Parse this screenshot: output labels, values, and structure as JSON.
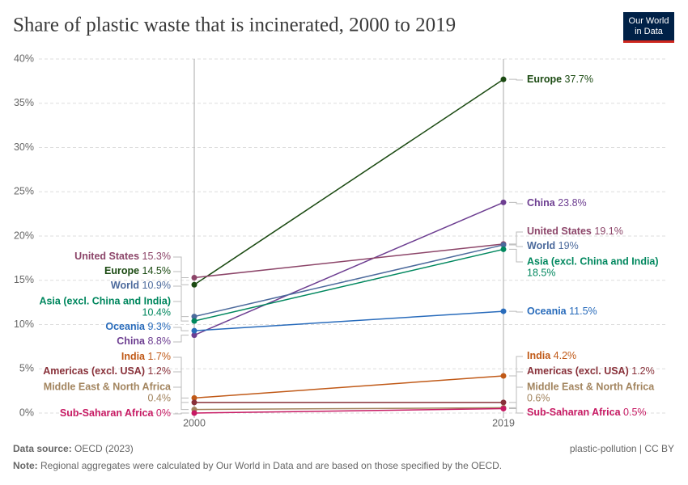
{
  "chart_data": {
    "type": "slope",
    "title": "Share of plastic waste that is incinerated, 2000 to 2019",
    "logo": [
      "Our World",
      "in Data"
    ],
    "categories": [
      "2000",
      "2019"
    ],
    "ylim": [
      0,
      40
    ],
    "yticks": [
      {
        "value": 0,
        "label": "0%"
      },
      {
        "value": 5,
        "label": "5%"
      },
      {
        "value": 10,
        "label": "10%"
      },
      {
        "value": 15,
        "label": "15%"
      },
      {
        "value": 20,
        "label": "20%"
      },
      {
        "value": 25,
        "label": "25%"
      },
      {
        "value": 30,
        "label": "30%"
      },
      {
        "value": 35,
        "label": "35%"
      },
      {
        "value": 40,
        "label": "40%"
      }
    ],
    "grid": true,
    "series": [
      {
        "name": "Europe",
        "color": "#1b4a12",
        "values": [
          14.5,
          37.7
        ],
        "value_labels": [
          "14.5%",
          "37.7%"
        ]
      },
      {
        "name": "China",
        "color": "#6d3e91",
        "values": [
          8.8,
          23.8
        ],
        "value_labels": [
          "8.8%",
          "23.8%"
        ]
      },
      {
        "name": "United States",
        "color": "#8c4569",
        "values": [
          15.3,
          19.1
        ],
        "value_labels": [
          "15.3%",
          "19.1%"
        ]
      },
      {
        "name": "World",
        "color": "#4c6a9c",
        "values": [
          10.9,
          19
        ],
        "value_labels": [
          "10.9%",
          "19%"
        ]
      },
      {
        "name": "Asia (excl. China and India)",
        "color": "#00875e",
        "values": [
          10.4,
          18.5
        ],
        "value_labels": [
          "10.4%",
          "18.5%"
        ]
      },
      {
        "name": "Oceania",
        "color": "#286bbb",
        "values": [
          9.3,
          11.5
        ],
        "value_labels": [
          "9.3%",
          "11.5%"
        ]
      },
      {
        "name": "India",
        "color": "#c05917",
        "values": [
          1.7,
          4.2
        ],
        "value_labels": [
          "1.7%",
          "4.2%"
        ]
      },
      {
        "name": "Americas (excl. USA)",
        "color": "#883039",
        "values": [
          1.2,
          1.2
        ],
        "value_labels": [
          "1.2%",
          "1.2%"
        ]
      },
      {
        "name": "Middle East & North Africa",
        "color": "#a2845e",
        "values": [
          0.4,
          0.6
        ],
        "value_labels": [
          "0.4%",
          "0.6%"
        ]
      },
      {
        "name": "Sub-Saharan Africa",
        "color": "#c71a63",
        "values": [
          0,
          0.5
        ],
        "value_labels": [
          "0%",
          "0.5%"
        ]
      }
    ],
    "source_label": "Data source:",
    "source": "OECD (2023)",
    "license": "plastic-pollution | CC BY",
    "note_label": "Note:",
    "note": "Regional aggregates were calculated by Our World in Data and are based on those specified by the OECD."
  }
}
